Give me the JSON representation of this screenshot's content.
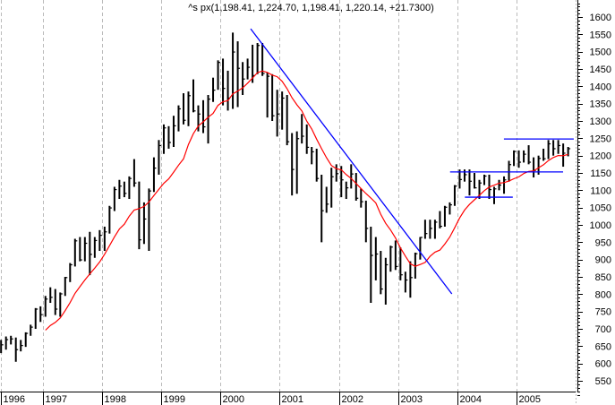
{
  "chart_data": {
    "type": "bar",
    "subtype": "ohlc-price-bars",
    "title": "^s px(1,198.41, 1,224.70, 1,198.41, 1,220.14, +21.7300)",
    "xlabel": "",
    "ylabel": "",
    "x_ticks": [
      "1996",
      "1997",
      "1998",
      "1999",
      "2000",
      "2001",
      "2002",
      "2003",
      "2004",
      "2005"
    ],
    "y_ticks": [
      1600,
      1550,
      1500,
      1450,
      1400,
      1350,
      1300,
      1250,
      1200,
      1150,
      1100,
      1050,
      1000,
      950,
      900,
      850,
      800,
      750,
      700,
      650,
      600,
      550
    ],
    "ylim": [
      510,
      1640
    ],
    "xlim": [
      "1996-04",
      "2005-12"
    ],
    "y_axis_position": "right",
    "grid": {
      "vertical": true,
      "horizontal": false,
      "style": "dashed"
    },
    "colors": {
      "bars": "#000000",
      "moving_average": "#ff0000",
      "trendlines": "#0000ff",
      "resistance_top": "#000080",
      "grid": "#bbbbbb"
    },
    "price_columns": [
      "month",
      "high",
      "low",
      "close"
    ],
    "price": [
      [
        "1996-04",
        668,
        630,
        654
      ],
      [
        "1996-05",
        678,
        640,
        669
      ],
      [
        "1996-06",
        680,
        655,
        671
      ],
      [
        "1996-07",
        675,
        605,
        640
      ],
      [
        "1996-08",
        668,
        635,
        652
      ],
      [
        "1996-09",
        690,
        648,
        687
      ],
      [
        "1996-10",
        712,
        680,
        705
      ],
      [
        "1996-11",
        760,
        700,
        757
      ],
      [
        "1996-12",
        765,
        720,
        741
      ],
      [
        "1997-01",
        795,
        735,
        786
      ],
      [
        "1997-02",
        820,
        775,
        791
      ],
      [
        "1997-03",
        815,
        740,
        757
      ],
      [
        "1997-04",
        805,
        735,
        801
      ],
      [
        "1997-05",
        850,
        795,
        848
      ],
      [
        "1997-06",
        890,
        835,
        885
      ],
      [
        "1997-07",
        960,
        880,
        954
      ],
      [
        "1997-08",
        965,
        895,
        899
      ],
      [
        "1997-09",
        965,
        895,
        947
      ],
      [
        "1997-10",
        980,
        855,
        915
      ],
      [
        "1997-11",
        965,
        905,
        955
      ],
      [
        "1997-12",
        985,
        925,
        970
      ],
      [
        "1998-01",
        995,
        925,
        980
      ],
      [
        "1998-02",
        1055,
        975,
        1049
      ],
      [
        "1998-03",
        1110,
        1040,
        1102
      ],
      [
        "1998-04",
        1130,
        1075,
        1112
      ],
      [
        "1998-05",
        1125,
        1080,
        1091
      ],
      [
        "1998-06",
        1140,
        1075,
        1134
      ],
      [
        "1998-07",
        1190,
        1110,
        1121
      ],
      [
        "1998-08",
        1125,
        930,
        957
      ],
      [
        "1998-09",
        1065,
        945,
        1017
      ],
      [
        "1998-10",
        1105,
        925,
        1098
      ],
      [
        "1998-11",
        1195,
        1095,
        1164
      ],
      [
        "1998-12",
        1245,
        1145,
        1229
      ],
      [
        "1999-01",
        1290,
        1205,
        1280
      ],
      [
        "1999-02",
        1285,
        1220,
        1238
      ],
      [
        "1999-03",
        1315,
        1225,
        1286
      ],
      [
        "1999-04",
        1345,
        1270,
        1335
      ],
      [
        "1999-05",
        1380,
        1290,
        1302
      ],
      [
        "1999-06",
        1385,
        1285,
        1373
      ],
      [
        "1999-07",
        1420,
        1325,
        1329
      ],
      [
        "1999-08",
        1345,
        1270,
        1320
      ],
      [
        "1999-09",
        1360,
        1265,
        1283
      ],
      [
        "1999-10",
        1375,
        1235,
        1363
      ],
      [
        "1999-11",
        1425,
        1355,
        1389
      ],
      [
        "1999-12",
        1475,
        1390,
        1469
      ],
      [
        "2000-01",
        1480,
        1345,
        1394
      ],
      [
        "2000-02",
        1445,
        1330,
        1366
      ],
      [
        "2000-03",
        1555,
        1335,
        1499
      ],
      [
        "2000-04",
        1530,
        1340,
        1452
      ],
      [
        "2000-05",
        1470,
        1375,
        1421
      ],
      [
        "2000-06",
        1480,
        1420,
        1455
      ],
      [
        "2000-07",
        1520,
        1410,
        1431
      ],
      [
        "2000-08",
        1525,
        1435,
        1518
      ],
      [
        "2000-09",
        1525,
        1430,
        1437
      ],
      [
        "2000-10",
        1440,
        1310,
        1429
      ],
      [
        "2000-11",
        1435,
        1300,
        1315
      ],
      [
        "2000-12",
        1390,
        1255,
        1320
      ],
      [
        "2001-01",
        1385,
        1275,
        1366
      ],
      [
        "2001-02",
        1375,
        1230,
        1240
      ],
      [
        "2001-03",
        1265,
        1085,
        1160
      ],
      [
        "2001-04",
        1270,
        1090,
        1249
      ],
      [
        "2001-05",
        1320,
        1235,
        1256
      ],
      [
        "2001-06",
        1290,
        1205,
        1224
      ],
      [
        "2001-07",
        1225,
        1175,
        1211
      ],
      [
        "2001-08",
        1220,
        1125,
        1134
      ],
      [
        "2001-09",
        1145,
        950,
        1041
      ],
      [
        "2001-10",
        1110,
        1035,
        1060
      ],
      [
        "2001-11",
        1165,
        1050,
        1139
      ],
      [
        "2001-12",
        1175,
        1125,
        1148
      ],
      [
        "2002-01",
        1170,
        1080,
        1130
      ],
      [
        "2002-02",
        1125,
        1075,
        1107
      ],
      [
        "2002-03",
        1175,
        1105,
        1147
      ],
      [
        "2002-04",
        1150,
        1070,
        1077
      ],
      [
        "2002-05",
        1105,
        1050,
        1067
      ],
      [
        "2002-06",
        1070,
        950,
        990
      ],
      [
        "2002-07",
        995,
        775,
        912
      ],
      [
        "2002-08",
        965,
        840,
        916
      ],
      [
        "2002-09",
        925,
        800,
        815
      ],
      [
        "2002-10",
        905,
        770,
        885
      ],
      [
        "2002-11",
        940,
        865,
        936
      ],
      [
        "2002-12",
        955,
        870,
        880
      ],
      [
        "2003-01",
        935,
        840,
        856
      ],
      [
        "2003-02",
        865,
        805,
        841
      ],
      [
        "2003-03",
        895,
        790,
        848
      ],
      [
        "2003-04",
        920,
        845,
        917
      ],
      [
        "2003-05",
        965,
        900,
        964
      ],
      [
        "2003-06",
        1015,
        960,
        975
      ],
      [
        "2003-07",
        1015,
        960,
        990
      ],
      [
        "2003-08",
        1015,
        960,
        1008
      ],
      [
        "2003-09",
        1040,
        990,
        996
      ],
      [
        "2003-10",
        1055,
        995,
        1051
      ],
      [
        "2003-11",
        1065,
        1030,
        1058
      ],
      [
        "2003-12",
        1115,
        1055,
        1112
      ],
      [
        "2004-01",
        1160,
        1105,
        1131
      ],
      [
        "2004-02",
        1160,
        1125,
        1145
      ],
      [
        "2004-03",
        1160,
        1085,
        1126
      ],
      [
        "2004-04",
        1150,
        1105,
        1107
      ],
      [
        "2004-05",
        1130,
        1075,
        1121
      ],
      [
        "2004-06",
        1145,
        1115,
        1141
      ],
      [
        "2004-07",
        1145,
        1075,
        1102
      ],
      [
        "2004-08",
        1110,
        1060,
        1104
      ],
      [
        "2004-09",
        1130,
        1100,
        1115
      ],
      [
        "2004-10",
        1140,
        1090,
        1130
      ],
      [
        "2004-11",
        1185,
        1125,
        1174
      ],
      [
        "2004-12",
        1215,
        1170,
        1212
      ],
      [
        "2005-01",
        1215,
        1165,
        1181
      ],
      [
        "2005-02",
        1215,
        1180,
        1204
      ],
      [
        "2005-03",
        1230,
        1175,
        1181
      ],
      [
        "2005-04",
        1195,
        1137,
        1157
      ],
      [
        "2005-05",
        1200,
        1145,
        1192
      ],
      [
        "2005-06",
        1220,
        1185,
        1191
      ],
      [
        "2005-07",
        1245,
        1190,
        1234
      ],
      [
        "2005-08",
        1245,
        1200,
        1220
      ],
      [
        "2005-09",
        1245,
        1205,
        1229
      ],
      [
        "2005-10",
        1235,
        1168,
        1207
      ],
      [
        "2005-11",
        1225,
        1198,
        1220
      ]
    ],
    "moving_average": {
      "window_months": 10,
      "color": "#ff0000"
    },
    "annotations": [
      {
        "kind": "trendline",
        "color": "#0000ff",
        "from": [
          2000.51,
          1566
        ],
        "to": [
          2003.91,
          801
        ]
      },
      {
        "kind": "horizontal",
        "color": "#0000ff",
        "from": [
          2004.79,
          1248
        ],
        "to": [
          2005.97,
          1248
        ]
      },
      {
        "kind": "horizontal",
        "color": "#0000ff",
        "from": [
          2003.88,
          1153
        ],
        "to": [
          2005.79,
          1153
        ]
      },
      {
        "kind": "horizontal",
        "color": "#0000ff",
        "from": [
          2004.13,
          1080
        ],
        "to": [
          2004.94,
          1080
        ]
      }
    ]
  }
}
